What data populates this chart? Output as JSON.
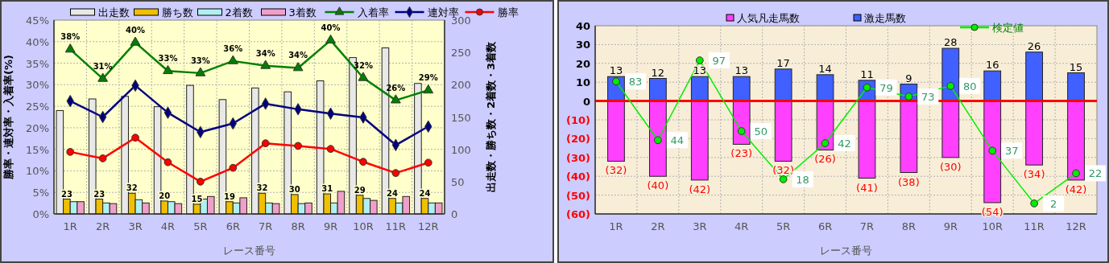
{
  "chart_data": [
    {
      "type": "bar",
      "xlabel": "レース番号",
      "ylabel": "勝率・連対率・入着率(%)",
      "y2label": "出走数・勝ち数・2着数・3着数",
      "categories": [
        "1R",
        "2R",
        "3R",
        "4R",
        "5R",
        "6R",
        "7R",
        "8R",
        "9R",
        "10R",
        "11R",
        "12R"
      ],
      "series": [
        {
          "name": "出走数",
          "axis": "y2",
          "color": "#e8e8e8",
          "values": [
            160,
            178,
            182,
            166,
            199,
            177,
            195,
            189,
            206,
            242,
            257,
            202
          ]
        },
        {
          "name": "勝ち数",
          "axis": "y2",
          "color": "#f0c000",
          "data_labels": true,
          "values": [
            23,
            23,
            32,
            20,
            15,
            19,
            32,
            30,
            31,
            29,
            24,
            24
          ]
        },
        {
          "name": "2着数",
          "axis": "y2",
          "color": "#b0f0f0",
          "values": [
            19,
            17,
            22,
            19,
            23,
            17,
            17,
            16,
            17,
            24,
            17,
            17
          ]
        },
        {
          "name": "3着数",
          "axis": "y2",
          "color": "#f0a0c8",
          "values": [
            19,
            16,
            17,
            16,
            27,
            25,
            16,
            17,
            35,
            21,
            27,
            17
          ]
        },
        {
          "name": "入着率",
          "type": "line",
          "color": "#008000",
          "marker": "triangle",
          "values": [
            38.2,
            31.4,
            39.8,
            33.2,
            32.7,
            35.5,
            34.4,
            33.9,
            40.3,
            31.6,
            26.4,
            28.7
          ],
          "value_labels": [
            "38%",
            "31%",
            "40%",
            "33%",
            "33%",
            "36%",
            "34%",
            "34%",
            "40%",
            "32%",
            "26%",
            "29%"
          ]
        },
        {
          "name": "連対率",
          "type": "line",
          "color": "#000080",
          "marker": "diamond",
          "values": [
            26.2,
            22.5,
            29.8,
            23.5,
            19.0,
            21.0,
            25.6,
            24.3,
            23.3,
            22.4,
            16.0,
            20.3
          ]
        },
        {
          "name": "勝率",
          "type": "line",
          "color": "#ff0000",
          "marker": "circle",
          "values": [
            14.4,
            12.9,
            17.7,
            12.0,
            7.5,
            10.7,
            16.4,
            15.8,
            15.1,
            12.1,
            9.5,
            11.9
          ]
        }
      ],
      "ylim": [
        0,
        45
      ],
      "yticks": [
        {
          "value": 0,
          "label": "0%"
        },
        {
          "value": 5,
          "label": "5%"
        },
        {
          "value": 10,
          "label": "10%"
        },
        {
          "value": 15,
          "label": "15%"
        },
        {
          "value": 20,
          "label": "20%"
        },
        {
          "value": 25,
          "label": "25%"
        },
        {
          "value": 30,
          "label": "30%"
        },
        {
          "value": 35,
          "label": "35%"
        },
        {
          "value": 40,
          "label": "40%"
        },
        {
          "value": 45,
          "label": "45%"
        }
      ],
      "y2lim": [
        0,
        300
      ],
      "y2ticks": [
        0,
        50,
        100,
        150,
        200,
        250,
        300
      ],
      "grid": true,
      "legend": "top"
    },
    {
      "type": "bar",
      "stacked": true,
      "xlabel": "レース番号",
      "categories": [
        "1R",
        "2R",
        "3R",
        "4R",
        "5R",
        "6R",
        "7R",
        "8R",
        "9R",
        "10R",
        "11R",
        "12R"
      ],
      "series": [
        {
          "name": "人気凡走馬数",
          "color": "#ff40ff",
          "values": [
            -32,
            -40,
            -42,
            -23,
            -32,
            -26,
            -41,
            -38,
            -30,
            -54,
            -34,
            -42
          ],
          "value_labels": [
            "(32)",
            "(40)",
            "(42)",
            "(23)",
            "(32)",
            "(26)",
            "(41)",
            "(38)",
            "(30)",
            "(54)",
            "(34)",
            "(42)"
          ]
        },
        {
          "name": "激走馬数",
          "color": "#4060ff",
          "data_labels": true,
          "values": [
            13,
            12,
            13,
            13,
            17,
            14,
            11,
            9,
            28,
            16,
            26,
            15
          ]
        },
        {
          "name": "検定値",
          "type": "line",
          "axis": "y2",
          "color": "#00ee00",
          "marker": "circle",
          "data_labels": true,
          "values": [
            83,
            44,
            97,
            50,
            18,
            42,
            79,
            73,
            80,
            37,
            2,
            22
          ]
        }
      ],
      "ylim": [
        -60,
        40
      ],
      "yticks": [
        {
          "value": -60,
          "label": "(60)"
        },
        {
          "value": -50,
          "label": "(50)"
        },
        {
          "value": -40,
          "label": "(40)"
        },
        {
          "value": -30,
          "label": "(30)"
        },
        {
          "value": -20,
          "label": "(20)"
        },
        {
          "value": -10,
          "label": "(10)"
        },
        0,
        10,
        20,
        30,
        40
      ],
      "y2lim": [
        -5,
        120
      ],
      "ref_lines": [
        {
          "axis": "y",
          "value": 0,
          "color": "#ff0000"
        }
      ],
      "grid": true,
      "legend": "top"
    }
  ]
}
